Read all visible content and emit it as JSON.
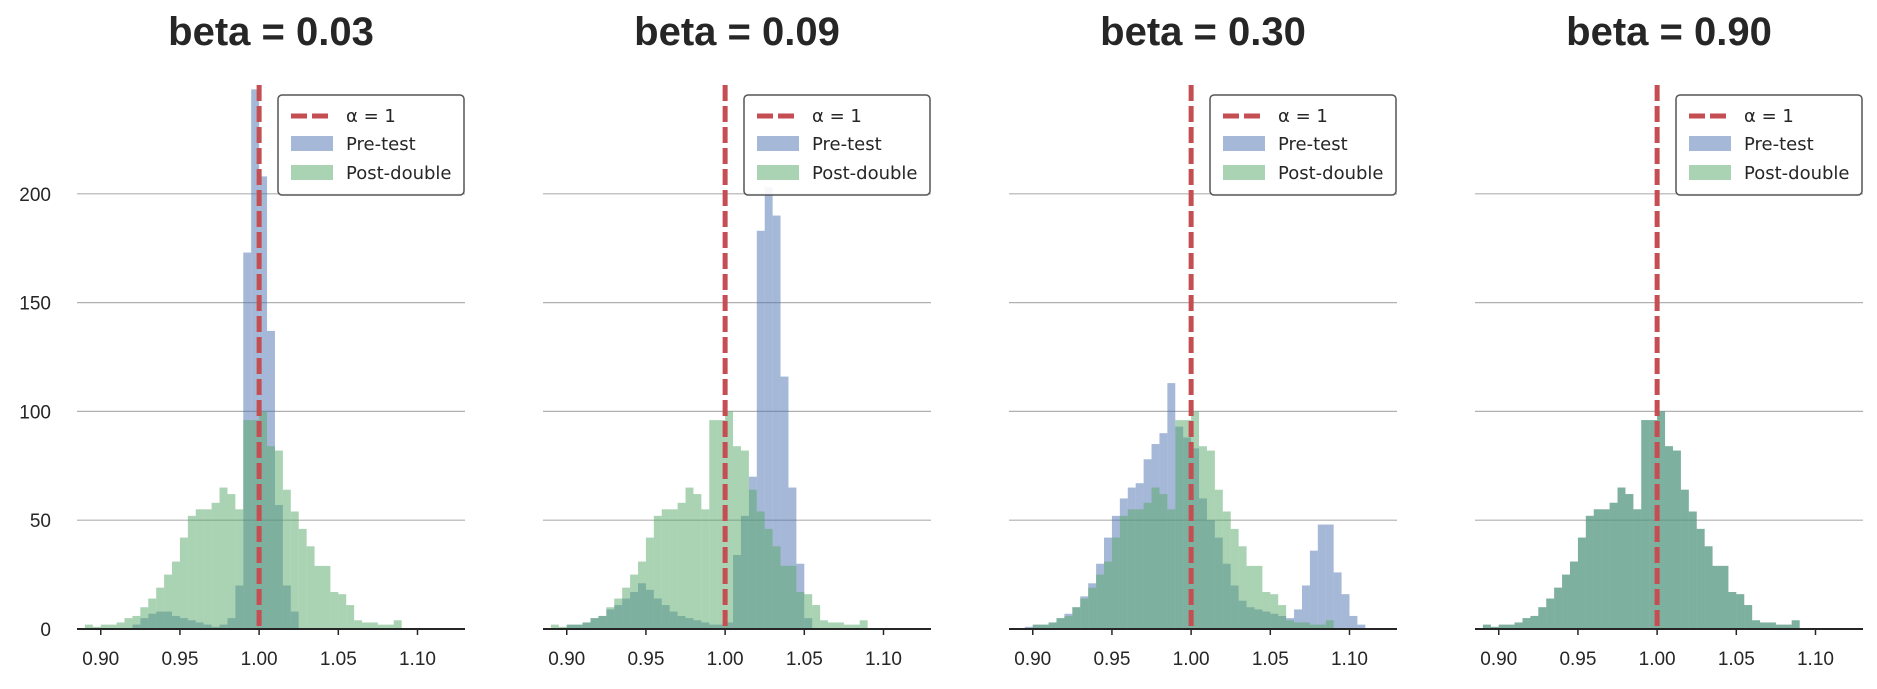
{
  "colors": {
    "pre": "#4c72b0",
    "post": "#55a868",
    "ref": "#c44e52",
    "grid": "#b0b0b0",
    "axis": "#262626",
    "legend_border": "#555555"
  },
  "chart_data": [
    {
      "type": "bar",
      "title": "beta = 0.03",
      "xlim": [
        0.885,
        1.13
      ],
      "ylim": [
        0,
        250
      ],
      "xticks": [
        0.9,
        0.95,
        1.0,
        1.05,
        1.1
      ],
      "xtick_labels": [
        "0.90",
        "0.95",
        "1.00",
        "1.05",
        "1.10"
      ],
      "yticks": [
        0,
        50,
        100,
        150,
        200
      ],
      "ytick_labels": [
        "0",
        "50",
        "100",
        "150",
        "200"
      ],
      "grid": "horizontal",
      "legend_position": "top-right",
      "reference_line": {
        "x": 1.0,
        "label": "α = 1"
      },
      "bin_edges": [
        0.89,
        0.895,
        0.9,
        0.905,
        0.91,
        0.915,
        0.92,
        0.925,
        0.93,
        0.935,
        0.94,
        0.945,
        0.95,
        0.955,
        0.96,
        0.965,
        0.97,
        0.975,
        0.98,
        0.985,
        0.99,
        0.995,
        1.0,
        1.005,
        1.01,
        1.015,
        1.02,
        1.025,
        1.03,
        1.035,
        1.04,
        1.045,
        1.05,
        1.055,
        1.06,
        1.065,
        1.07,
        1.075,
        1.08,
        1.085,
        1.09,
        1.095,
        1.1,
        1.105,
        1.11
      ],
      "series": [
        {
          "name": "Pre-test",
          "values": [
            0,
            0,
            0,
            0,
            0,
            0,
            2,
            5,
            7,
            8,
            8,
            6,
            5,
            4,
            3,
            2,
            1,
            2,
            5,
            20,
            173,
            248,
            208,
            137,
            57,
            20,
            8,
            0,
            0,
            0,
            0,
            0,
            0,
            0,
            0,
            0,
            0,
            0,
            0,
            0,
            0,
            0,
            0,
            0
          ]
        },
        {
          "name": "Post-double",
          "values": [
            2,
            1,
            2,
            2,
            3,
            5,
            6,
            10,
            14,
            19,
            25,
            31,
            42,
            52,
            55,
            55,
            58,
            65,
            62,
            55,
            96,
            96,
            100,
            84,
            82,
            64,
            54,
            46,
            38,
            29,
            29,
            17,
            16,
            11,
            4,
            3,
            3,
            2,
            2,
            4,
            0,
            0,
            0,
            0
          ]
        }
      ]
    },
    {
      "type": "bar",
      "title": "beta = 0.09",
      "xlim": [
        0.885,
        1.13
      ],
      "ylim": [
        0,
        250
      ],
      "xticks": [
        0.9,
        0.95,
        1.0,
        1.05,
        1.1
      ],
      "xtick_labels": [
        "0.90",
        "0.95",
        "1.00",
        "1.05",
        "1.10"
      ],
      "yticks": [
        0,
        50,
        100,
        150,
        200
      ],
      "ytick_labels": [],
      "grid": "horizontal",
      "legend_position": "top-right",
      "reference_line": {
        "x": 1.0,
        "label": "α = 1"
      },
      "bin_edges": [
        0.89,
        0.895,
        0.9,
        0.905,
        0.91,
        0.915,
        0.92,
        0.925,
        0.93,
        0.935,
        0.94,
        0.945,
        0.95,
        0.955,
        0.96,
        0.965,
        0.97,
        0.975,
        0.98,
        0.985,
        0.99,
        0.995,
        1.0,
        1.005,
        1.01,
        1.015,
        1.02,
        1.025,
        1.03,
        1.035,
        1.04,
        1.045,
        1.05,
        1.055,
        1.06,
        1.065,
        1.07,
        1.075,
        1.08,
        1.085,
        1.09,
        1.095,
        1.1,
        1.105,
        1.11
      ],
      "series": [
        {
          "name": "Pre-test",
          "values": [
            0,
            0,
            2,
            2,
            3,
            5,
            6,
            9,
            11,
            14,
            17,
            21,
            18,
            14,
            11,
            8,
            6,
            5,
            4,
            3,
            2,
            2,
            3,
            34,
            52,
            70,
            183,
            203,
            190,
            116,
            65,
            30,
            5,
            0,
            0,
            0,
            0,
            0,
            0,
            0,
            0,
            0,
            0,
            0
          ]
        },
        {
          "name": "Post-double",
          "values": [
            2,
            1,
            2,
            2,
            3,
            5,
            6,
            10,
            14,
            19,
            25,
            31,
            42,
            52,
            55,
            55,
            58,
            65,
            62,
            55,
            96,
            96,
            100,
            84,
            82,
            64,
            54,
            46,
            38,
            29,
            29,
            17,
            16,
            11,
            4,
            3,
            3,
            2,
            2,
            4,
            0,
            0,
            0,
            0
          ]
        }
      ]
    },
    {
      "type": "bar",
      "title": "beta = 0.30",
      "xlim": [
        0.885,
        1.13
      ],
      "ylim": [
        0,
        250
      ],
      "xticks": [
        0.9,
        0.95,
        1.0,
        1.05,
        1.1
      ],
      "xtick_labels": [
        "0.90",
        "0.95",
        "1.00",
        "1.05",
        "1.10"
      ],
      "yticks": [
        0,
        50,
        100,
        150,
        200
      ],
      "ytick_labels": [],
      "grid": "horizontal",
      "legend_position": "top-right",
      "reference_line": {
        "x": 1.0,
        "label": "α = 1"
      },
      "bin_edges": [
        0.89,
        0.895,
        0.9,
        0.905,
        0.91,
        0.915,
        0.92,
        0.925,
        0.93,
        0.935,
        0.94,
        0.945,
        0.95,
        0.955,
        0.96,
        0.965,
        0.97,
        0.975,
        0.98,
        0.985,
        0.99,
        0.995,
        1.0,
        1.005,
        1.01,
        1.015,
        1.02,
        1.025,
        1.03,
        1.035,
        1.04,
        1.045,
        1.05,
        1.055,
        1.06,
        1.065,
        1.07,
        1.075,
        1.08,
        1.085,
        1.09,
        1.095,
        1.1,
        1.105,
        1.11,
        1.115,
        1.12
      ],
      "series": [
        {
          "name": "Pre-test",
          "values": [
            0,
            1,
            2,
            2,
            3,
            5,
            7,
            10,
            15,
            21,
            30,
            42,
            52,
            60,
            65,
            67,
            78,
            85,
            90,
            113,
            93,
            88,
            83,
            60,
            50,
            42,
            30,
            20,
            13,
            10,
            9,
            8,
            7,
            6,
            5,
            9,
            20,
            36,
            48,
            48,
            26,
            16,
            6,
            2,
            0,
            0
          ]
        },
        {
          "name": "Post-double",
          "values": [
            0,
            0,
            2,
            2,
            3,
            5,
            6,
            10,
            14,
            19,
            25,
            31,
            42,
            52,
            55,
            55,
            58,
            65,
            62,
            55,
            96,
            96,
            100,
            84,
            82,
            64,
            54,
            46,
            38,
            29,
            29,
            17,
            16,
            11,
            4,
            3,
            3,
            2,
            2,
            4,
            0,
            0,
            0,
            0,
            0,
            0
          ]
        }
      ]
    },
    {
      "type": "bar",
      "title": "beta = 0.90",
      "xlim": [
        0.885,
        1.13
      ],
      "ylim": [
        0,
        250
      ],
      "xticks": [
        0.9,
        0.95,
        1.0,
        1.05,
        1.1
      ],
      "xtick_labels": [
        "0.90",
        "0.95",
        "1.00",
        "1.05",
        "1.10"
      ],
      "yticks": [
        0,
        50,
        100,
        150,
        200
      ],
      "ytick_labels": [],
      "grid": "horizontal",
      "legend_position": "top-right",
      "reference_line": {
        "x": 1.0,
        "label": "α = 1"
      },
      "bin_edges": [
        0.89,
        0.895,
        0.9,
        0.905,
        0.91,
        0.915,
        0.92,
        0.925,
        0.93,
        0.935,
        0.94,
        0.945,
        0.95,
        0.955,
        0.96,
        0.965,
        0.97,
        0.975,
        0.98,
        0.985,
        0.99,
        0.995,
        1.0,
        1.005,
        1.01,
        1.015,
        1.02,
        1.025,
        1.03,
        1.035,
        1.04,
        1.045,
        1.05,
        1.055,
        1.06,
        1.065,
        1.07,
        1.075,
        1.08,
        1.085,
        1.09,
        1.095,
        1.1,
        1.105,
        1.11
      ],
      "series": [
        {
          "name": "Pre-test",
          "values": [
            2,
            1,
            2,
            2,
            3,
            5,
            6,
            10,
            14,
            19,
            25,
            31,
            42,
            52,
            55,
            55,
            58,
            65,
            62,
            55,
            96,
            96,
            100,
            84,
            82,
            64,
            54,
            46,
            38,
            29,
            29,
            17,
            16,
            11,
            4,
            3,
            3,
            2,
            2,
            4,
            0,
            0,
            0,
            0
          ]
        },
        {
          "name": "Post-double",
          "values": [
            2,
            1,
            2,
            2,
            3,
            5,
            6,
            10,
            14,
            19,
            25,
            31,
            42,
            52,
            55,
            55,
            58,
            65,
            62,
            55,
            96,
            96,
            100,
            84,
            82,
            64,
            54,
            46,
            38,
            29,
            29,
            17,
            16,
            11,
            4,
            3,
            3,
            2,
            2,
            4,
            0,
            0,
            0,
            0
          ]
        }
      ]
    }
  ]
}
